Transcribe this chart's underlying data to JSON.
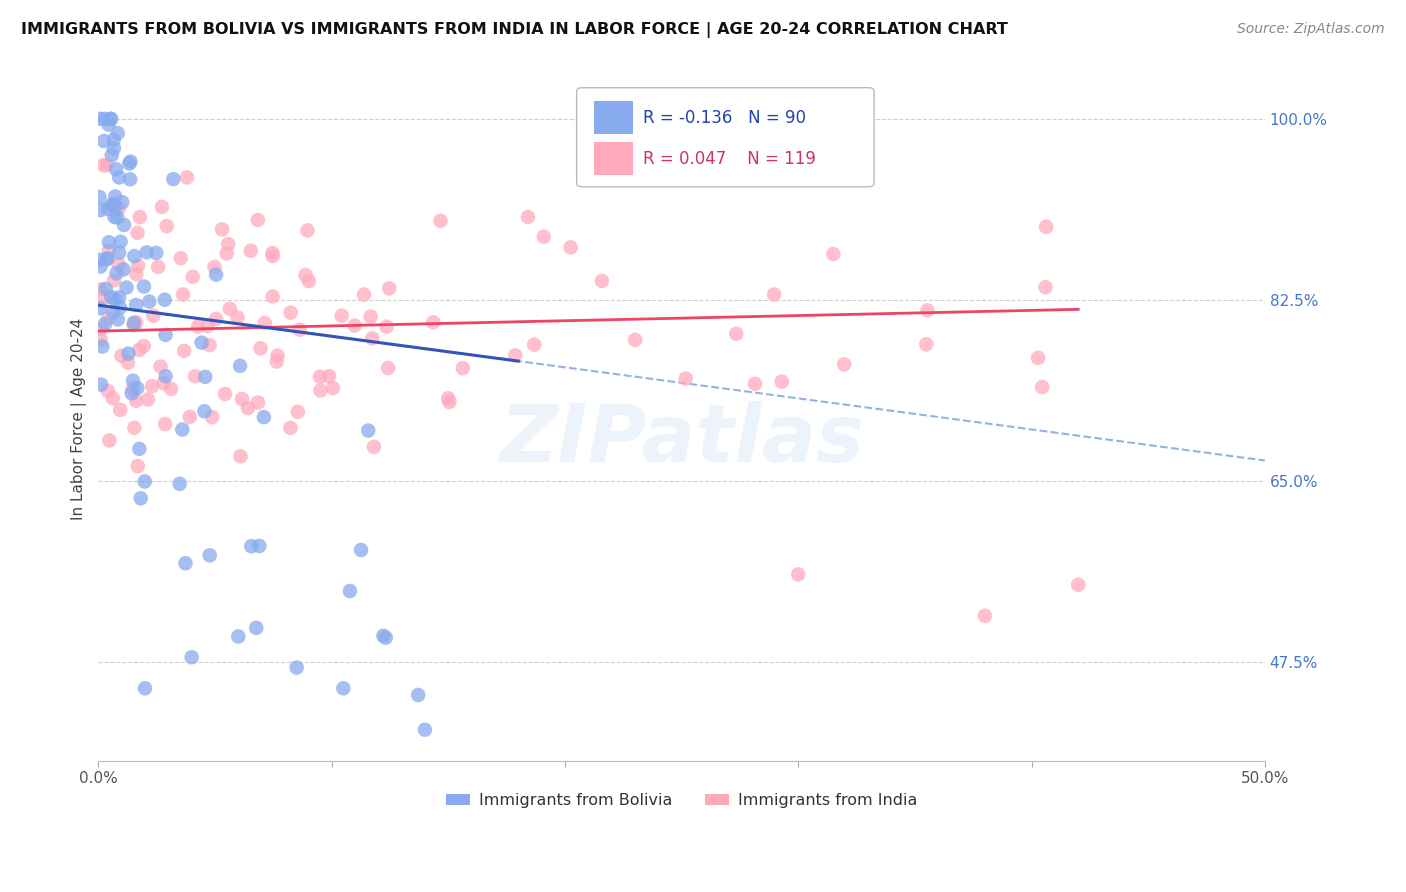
{
  "title": "IMMIGRANTS FROM BOLIVIA VS IMMIGRANTS FROM INDIA IN LABOR FORCE | AGE 20-24 CORRELATION CHART",
  "source": "Source: ZipAtlas.com",
  "ylabel": "In Labor Force | Age 20-24",
  "xlim": [
    0.0,
    0.5
  ],
  "ylim": [
    0.38,
    1.04
  ],
  "yticks_right": [
    0.475,
    0.65,
    0.825,
    1.0
  ],
  "yticklabels_right": [
    "47.5%",
    "65.0%",
    "82.5%",
    "100.0%"
  ],
  "gridline_color": "#d0d0d0",
  "bolivia_color": "#88aaee",
  "bolivia_edge": "#6688cc",
  "india_color": "#ffaabb",
  "india_edge": "#dd8899",
  "bolivia_R": "-0.136",
  "bolivia_N": "90",
  "india_R": "0.047",
  "india_N": "119",
  "watermark": "ZIPatlas",
  "background_color": "#ffffff",
  "trend_bolivia_solid_color": "#3355bb",
  "trend_bolivia_dash_color": "#88aadd",
  "trend_india_color": "#ee4466"
}
